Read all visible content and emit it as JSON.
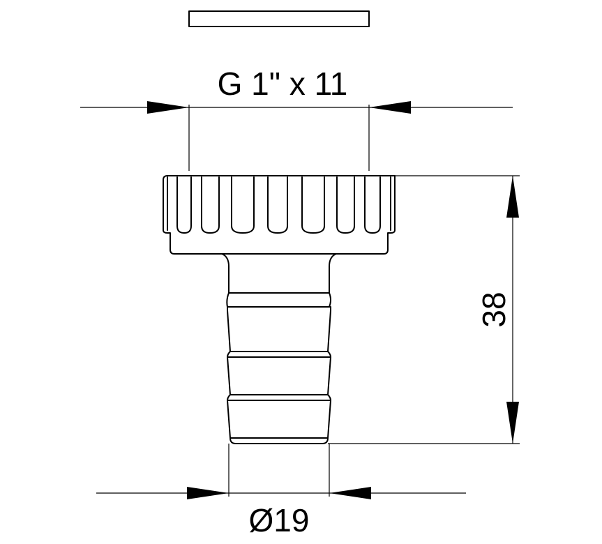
{
  "dimensions": {
    "thread_label": "G 1\" x 11",
    "height_label": "38",
    "diameter_label": "Ø19"
  },
  "colors": {
    "line": "#000000",
    "background": "#ffffff"
  }
}
